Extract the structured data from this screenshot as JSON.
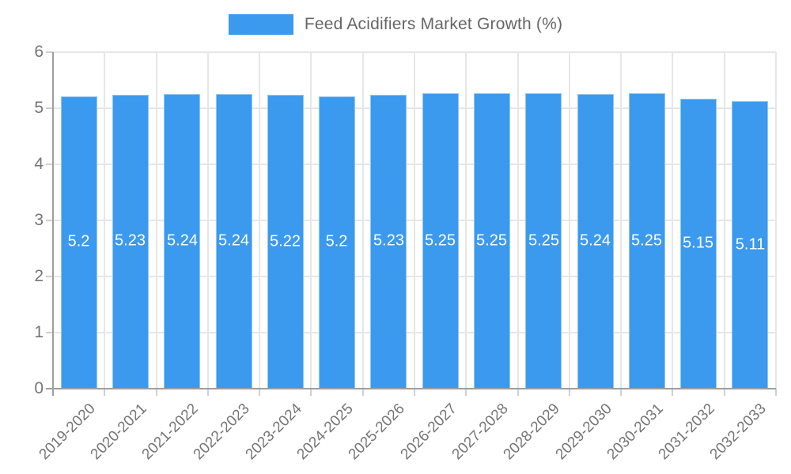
{
  "chart_data": {
    "type": "bar",
    "title": "Feed Acidifiers Market Growth (%)",
    "legend_position": "top",
    "categories": [
      "2019-2020",
      "2020-2021",
      "2021-2022",
      "2022-2023",
      "2023-2024",
      "2024-2025",
      "2025-2026",
      "2026-2027",
      "2027-2028",
      "2028-2029",
      "2029-2030",
      "2030-2031",
      "2031-2032",
      "2032-2033"
    ],
    "values": [
      5.2,
      5.23,
      5.24,
      5.24,
      5.22,
      5.2,
      5.23,
      5.25,
      5.25,
      5.25,
      5.24,
      5.25,
      5.15,
      5.11
    ],
    "value_labels": [
      "5.2",
      "5.23",
      "5.24",
      "5.24",
      "5.22",
      "5.2",
      "5.23",
      "5.25",
      "5.25",
      "5.25",
      "5.24",
      "5.25",
      "5.15",
      "5.11"
    ],
    "xlabel": "",
    "ylabel": "",
    "ylim": [
      0,
      6
    ],
    "y_tick_labels": [
      "0",
      "1",
      "2",
      "3",
      "4",
      "5",
      "6"
    ],
    "grid": true,
    "colors": {
      "bar": "#3b99ee",
      "bar_label_text": "#ffffff",
      "grid_line": "#e6e6e6",
      "axis_line": "#9e9e9e",
      "tick_text": "#757575",
      "legend_text": "#666666",
      "background": "#ffffff"
    }
  }
}
